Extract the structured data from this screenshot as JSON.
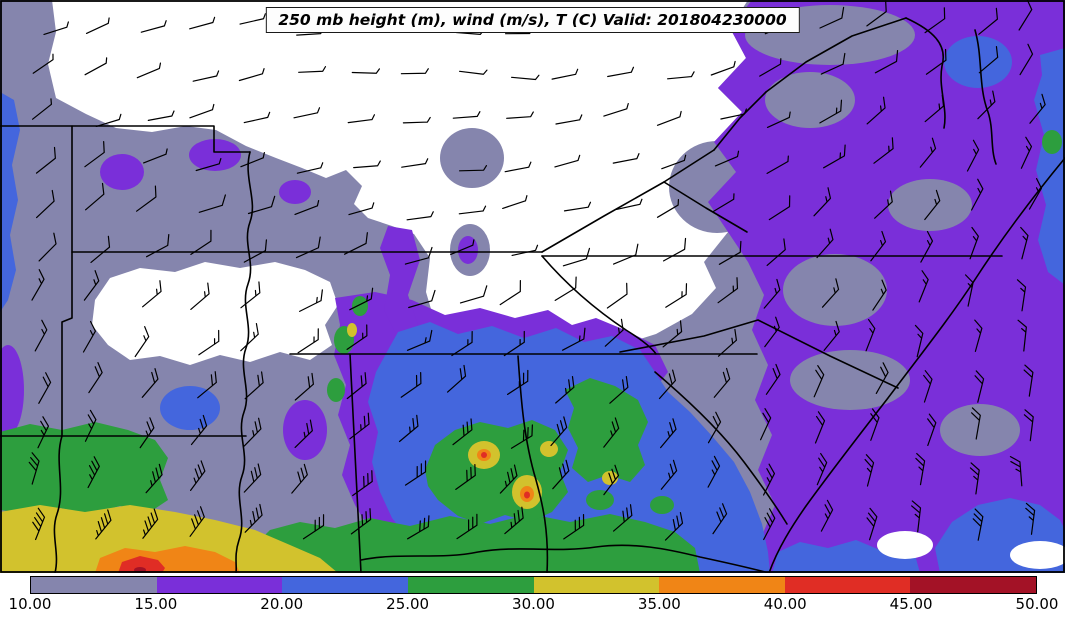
{
  "title": "250 mb height (m), wind (m/s), T (C) Valid: 201804230000",
  "valid_time": "201804230000",
  "colorbar": {
    "tick_labels": [
      "10.00",
      "15.00",
      "20.00",
      "25.00",
      "30.00",
      "35.00",
      "40.00",
      "45.00",
      "50.00"
    ],
    "levels": [
      10,
      15,
      20,
      25,
      30,
      35,
      40,
      45,
      50
    ],
    "colors": [
      "#8585ad",
      "#7a2fd9",
      "#4466dd",
      "#2d9e3e",
      "#d2c22d",
      "#f08516",
      "#e02d25",
      "#a31226"
    ],
    "position": "bottom"
  },
  "chart_data": {
    "type": "heatmap",
    "title": "250 mb height (m), wind (m/s), T (C) Valid: 201804230000",
    "field": "250 mb wind speed (m/s), filled contours",
    "overlays": [
      "wind barbs",
      "state boundaries"
    ],
    "region": "southeastern United States",
    "levels": [
      10,
      15,
      20,
      25,
      30,
      35,
      40,
      45,
      50
    ],
    "colors": [
      "#8585ad",
      "#7a2fd9",
      "#4466dd",
      "#2d9e3e",
      "#d2c22d",
      "#f08516",
      "#e02d25",
      "#a31226"
    ],
    "legend_position": "bottom colorbar",
    "grid_estimate": {
      "note": "coarse wind speed (m/s) estimated from fill colors; 12 columns west-to-east, 7 rows north-to-south; values below the 10 m/s minimum contour (white areas) shown as 8",
      "values": [
        [
          12,
          8,
          8,
          8,
          8,
          8,
          8,
          12,
          12,
          17,
          17,
          17
        ],
        [
          22,
          12,
          12,
          12,
          8,
          8,
          8,
          8,
          12,
          12,
          17,
          22
        ],
        [
          22,
          12,
          12,
          12,
          12,
          8,
          8,
          12,
          12,
          17,
          17,
          22
        ],
        [
          12,
          8,
          8,
          12,
          12,
          8,
          8,
          8,
          12,
          12,
          17,
          17
        ],
        [
          12,
          12,
          12,
          17,
          22,
          22,
          12,
          12,
          17,
          12,
          17,
          17
        ],
        [
          27,
          27,
          12,
          17,
          22,
          27,
          27,
          22,
          22,
          17,
          12,
          17
        ],
        [
          32,
          37,
          27,
          22,
          27,
          27,
          27,
          22,
          22,
          17,
          22,
          22
        ]
      ]
    }
  }
}
